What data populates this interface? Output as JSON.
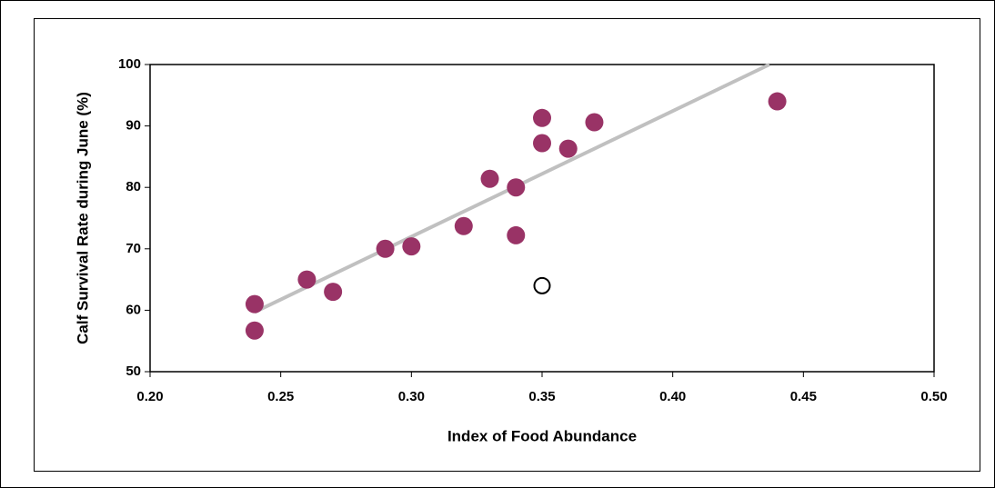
{
  "chart_data": {
    "type": "scatter",
    "x_label": "Index of Food Abundance",
    "y_label": "Calf Survival Rate during June (%)",
    "xlim": [
      0.2,
      0.5
    ],
    "ylim": [
      50,
      100
    ],
    "xticks": [
      {
        "value": 0.2,
        "label": "0.20"
      },
      {
        "value": 0.25,
        "label": "0.25"
      },
      {
        "value": 0.3,
        "label": "0.30"
      },
      {
        "value": 0.35,
        "label": "0.35"
      },
      {
        "value": 0.4,
        "label": "0.40"
      },
      {
        "value": 0.45,
        "label": "0.45"
      },
      {
        "value": 0.5,
        "label": "0.50"
      }
    ],
    "yticks": [
      50,
      60,
      70,
      80,
      90,
      100
    ],
    "grid": false,
    "series": [
      {
        "color": "#993366",
        "filled": true,
        "x": [
          0.24,
          0.24,
          0.26,
          0.27,
          0.29,
          0.3,
          0.32,
          0.33,
          0.34,
          0.34,
          0.35,
          0.35,
          0.36,
          0.37,
          0.44
        ],
        "values": [
          61,
          56.7,
          65,
          63,
          70,
          70.4,
          73.7,
          81.4,
          80,
          72.2,
          91.3,
          87.2,
          86.3,
          90.6,
          94
        ]
      },
      {
        "color": "#000000",
        "filled": false,
        "x": [
          0.35
        ],
        "values": [
          64
        ]
      }
    ],
    "trendline": {
      "color": "#c0c0c0",
      "x": [
        0.24,
        0.437
      ],
      "values": [
        59.7,
        100
      ]
    }
  }
}
